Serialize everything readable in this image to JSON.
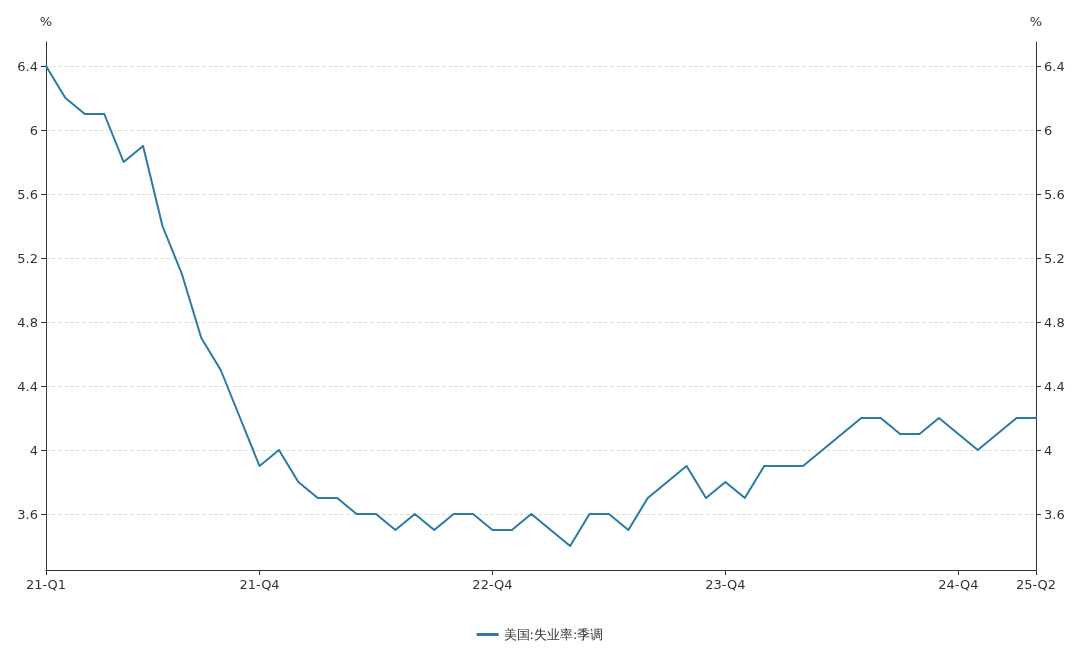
{
  "chart_data": {
    "type": "line",
    "ylabel": "%",
    "y2label": "%",
    "categories": [
      "21-Q1",
      null,
      null,
      null,
      null,
      null,
      null,
      null,
      null,
      null,
      null,
      "21-Q4",
      null,
      null,
      null,
      null,
      null,
      null,
      null,
      null,
      null,
      null,
      null,
      "22-Q4",
      null,
      null,
      null,
      null,
      null,
      null,
      null,
      null,
      null,
      null,
      null,
      "23-Q4",
      null,
      null,
      null,
      null,
      null,
      null,
      null,
      null,
      null,
      null,
      null,
      "24-Q4",
      null,
      null,
      null,
      "25-Q2"
    ],
    "series": [
      {
        "name": "美国:失业率:季调",
        "color": "#2a7aa3",
        "values": [
          6.4,
          6.2,
          6.1,
          6.1,
          5.8,
          5.9,
          5.4,
          5.1,
          4.7,
          4.5,
          4.2,
          3.9,
          4.0,
          3.8,
          3.7,
          3.7,
          3.6,
          3.6,
          3.5,
          3.6,
          3.5,
          3.6,
          3.6,
          3.5,
          3.5,
          3.6,
          3.5,
          3.4,
          3.6,
          3.6,
          3.5,
          3.7,
          3.8,
          3.9,
          3.7,
          3.8,
          3.7,
          3.9,
          3.9,
          3.9,
          4.0,
          4.1,
          4.2,
          4.2,
          4.1,
          4.1,
          4.2,
          4.1,
          4.0,
          4.1,
          4.2,
          4.2
        ]
      }
    ],
    "ylim": [
      3.25,
      6.55
    ],
    "yticks": [
      3.6,
      4,
      4.4,
      4.8,
      5.2,
      5.6,
      6,
      6.4
    ],
    "y2lim": [
      3.25,
      6.55
    ],
    "y2ticks": [
      3.6,
      4,
      4.4,
      4.8,
      5.2,
      5.6,
      6,
      6.4
    ],
    "grid": "y",
    "legend": "bottom",
    "marker": "none",
    "line_style": "solid"
  }
}
